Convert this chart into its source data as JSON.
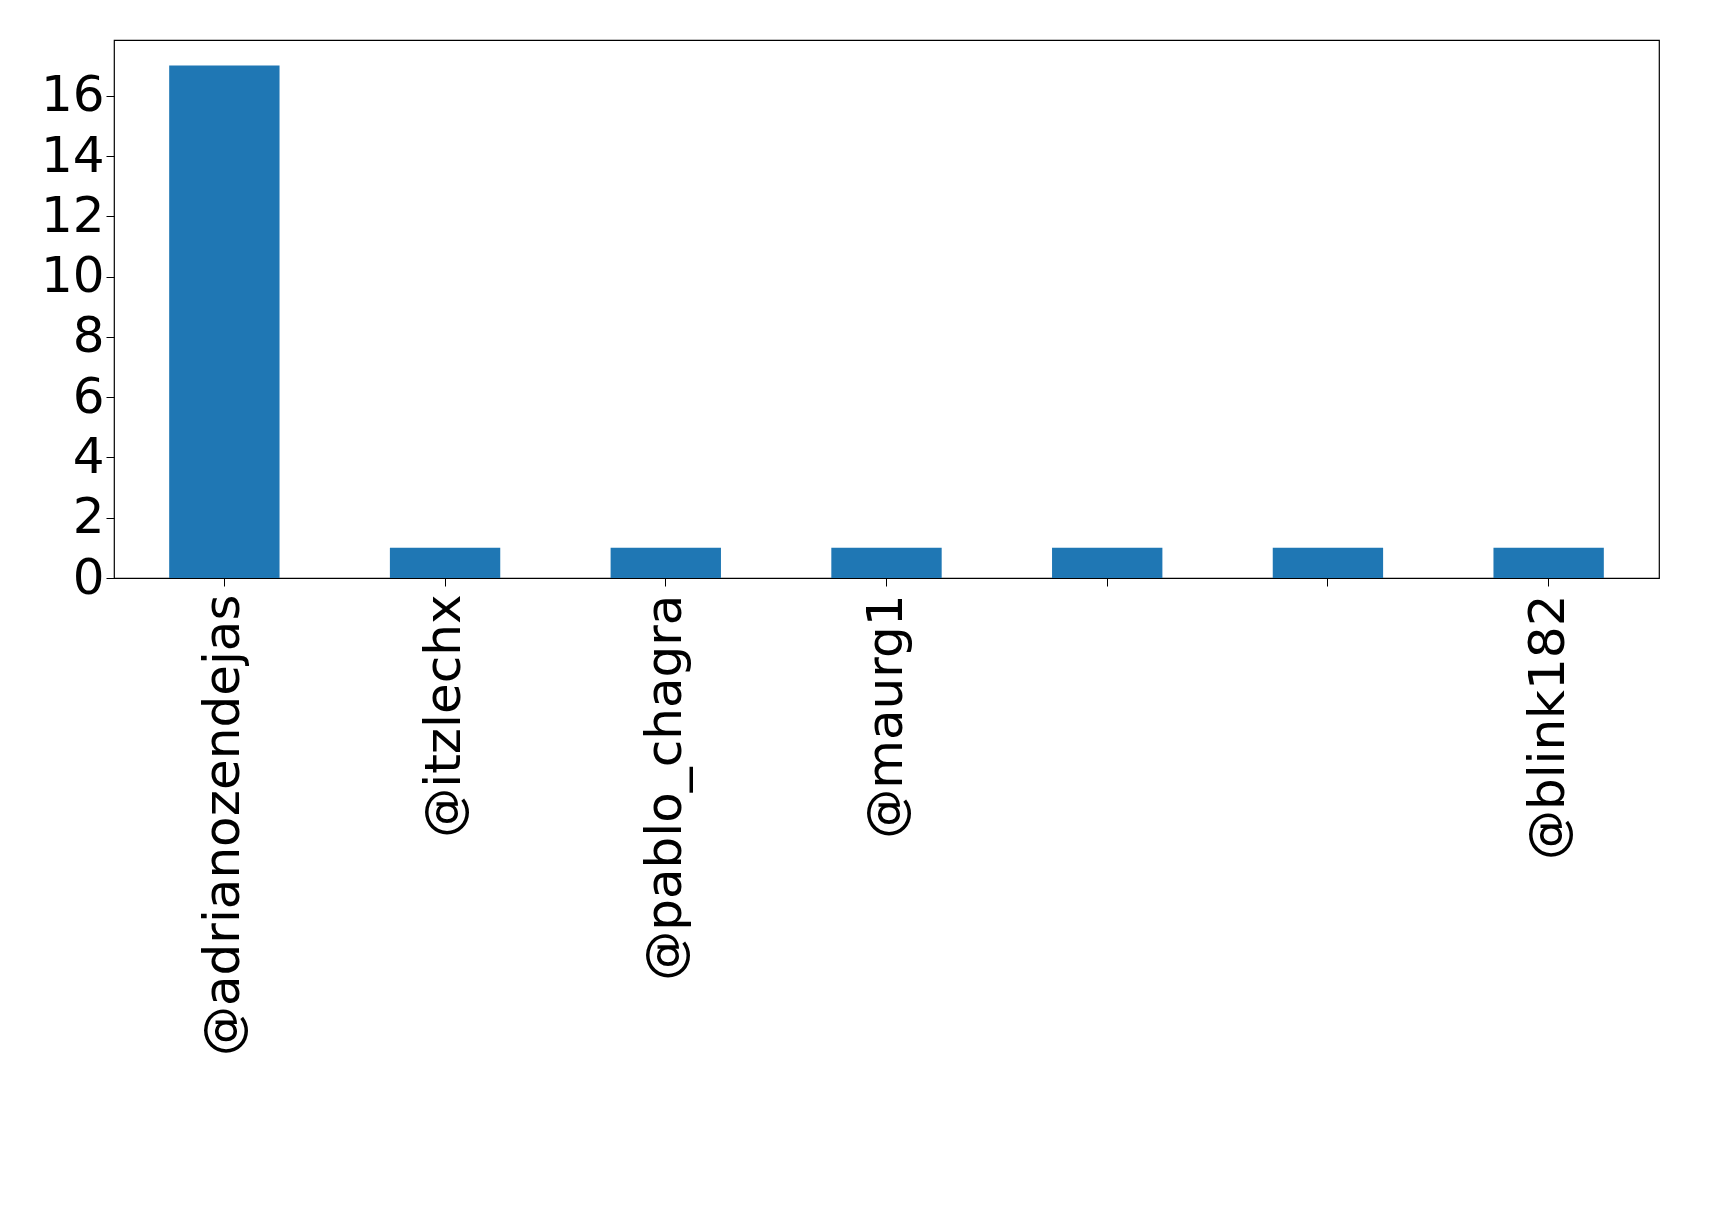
{
  "chart_data": {
    "type": "bar",
    "categories": [
      "@adrianozendejas",
      "@itzlechx",
      "@pablo_chagra",
      "@maurg1",
      null,
      null,
      "@blink182"
    ],
    "values": [
      17,
      1,
      1,
      1,
      1,
      1,
      1
    ],
    "color": "#1f77b4",
    "ylim": [
      0,
      17.85
    ],
    "yticks": [
      0,
      2,
      4,
      6,
      8,
      10,
      12,
      14,
      16
    ],
    "grid": false
  }
}
